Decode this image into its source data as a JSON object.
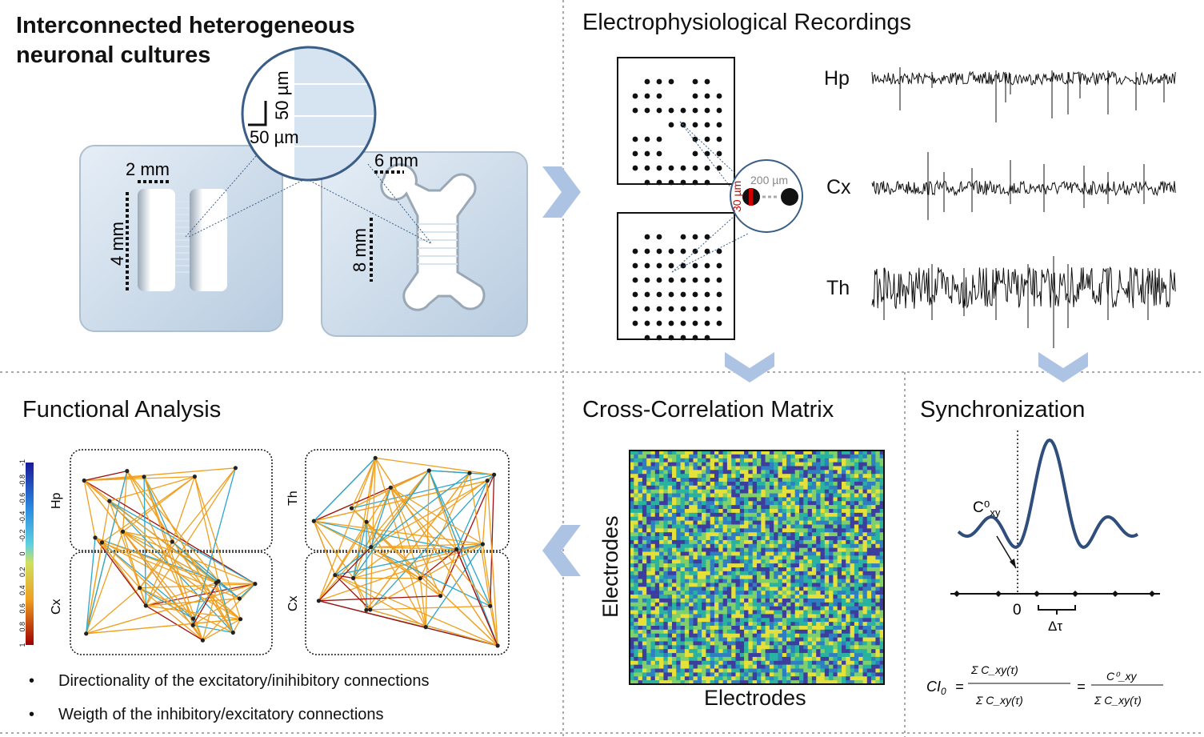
{
  "panels": {
    "cultures": {
      "title_line1": "Interconnected heterogeneous",
      "title_line2": "neuronal cultures",
      "zoom_scale_vertical": "50 µm",
      "zoom_scale_horizontal": "50 µm",
      "left_device_width": "2 mm",
      "left_device_height": "4 mm",
      "right_device_width": "6 mm",
      "right_device_height": "8 mm"
    },
    "recordings": {
      "title": "Electrophysiological Recordings",
      "electrode_spacing": "200 µm",
      "electrode_diameter": "30 µm",
      "traces": [
        "Hp",
        "Cx",
        "Th"
      ]
    },
    "cross_correlation": {
      "title": "Cross-Correlation Matrix",
      "x_label": "Electrodes",
      "y_label": "Electrodes"
    },
    "synchronization": {
      "title": "Synchronization",
      "peak_label": "C⁰",
      "peak_label_sub": "xy",
      "zero_label": "0",
      "delta_label": "Δτ",
      "formula_lhs": "CI",
      "formula_lhs_sub": "0",
      "formula_eq": "=",
      "formula_num1": "Σ C_xy(τ)",
      "formula_den1": "Σ C_xy(τ)",
      "formula_num2": "C⁰_xy",
      "formula_den2": "Σ C_xy(τ)"
    },
    "functional": {
      "title": "Functional Analysis",
      "colorbar_ticks": [
        "1",
        "0.8",
        "0.6",
        "0.4",
        "0.2",
        "0",
        "-0.2",
        "-0.4",
        "-0.6",
        "-0.8",
        "-1"
      ],
      "graph1_top_label": "Hp",
      "graph1_bottom_label": "Cx",
      "graph2_top_label": "Th",
      "graph2_bottom_label": "Cx",
      "bullets": [
        "Directionality of the excitatory/inihibitory connections",
        "Weigth of the inhibitory/excitatory connections"
      ]
    }
  },
  "colors": {
    "device_fill": "#d3e1ee",
    "circle_stroke": "#3a5e86",
    "arrow_fill": "#adc3e3",
    "trace": "#111111",
    "electrode_highlight": "#d00000",
    "curve": "#2f4e7c",
    "edge_excitatory": "#f0a020",
    "edge_inhibitory": "#2aa6cf",
    "divider": "#aaaaaa"
  },
  "icons": [
    "chevron-right-icon",
    "chevron-down-icon",
    "chevron-left-icon"
  ]
}
